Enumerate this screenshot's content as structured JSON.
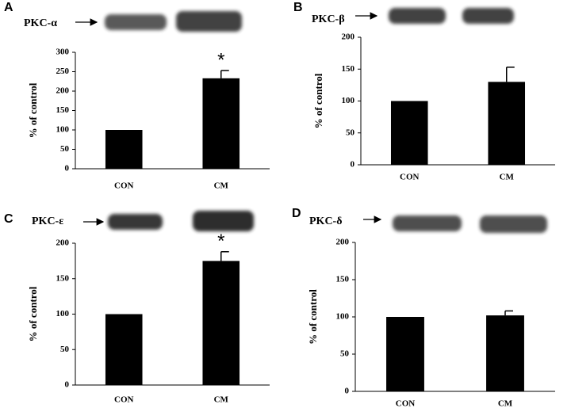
{
  "chart_data": [
    {
      "type": "bar",
      "panel": "A",
      "label": "PKC-α",
      "ylabel": "% of control",
      "categories": [
        "CON",
        "CM"
      ],
      "values": [
        100,
        233
      ],
      "errors": [
        0,
        20
      ],
      "color": "#000000",
      "ylim": [
        0,
        300
      ],
      "yticks": [
        0,
        50,
        100,
        150,
        200,
        250,
        300
      ],
      "annotations": [
        {
          "text": "*",
          "x": "CM"
        }
      ]
    },
    {
      "type": "bar",
      "panel": "B",
      "label": "PKC-β",
      "ylabel": "% of control",
      "categories": [
        "CON",
        "CM"
      ],
      "values": [
        100,
        130
      ],
      "errors": [
        0,
        23
      ],
      "color": "#000000",
      "ylim": [
        0,
        200
      ],
      "yticks": [
        0,
        50,
        100,
        150,
        200
      ]
    },
    {
      "type": "bar",
      "panel": "C",
      "label": "PKC-ε",
      "ylabel": "% of control",
      "categories": [
        "CON",
        "CM"
      ],
      "values": [
        100,
        175
      ],
      "errors": [
        0,
        13
      ],
      "color": "#000000",
      "ylim": [
        0,
        200
      ],
      "yticks": [
        0,
        50,
        100,
        150,
        200
      ],
      "annotations": [
        {
          "text": "*",
          "x": "CM"
        }
      ]
    },
    {
      "type": "bar",
      "panel": "D",
      "label": "PKC-δ",
      "ylabel": "% of control",
      "categories": [
        "CON",
        "CM"
      ],
      "values": [
        100,
        102
      ],
      "errors": [
        0,
        6
      ],
      "color": "#000000",
      "ylim": [
        0,
        200
      ],
      "yticks": [
        0,
        50,
        100,
        150,
        200
      ]
    }
  ]
}
